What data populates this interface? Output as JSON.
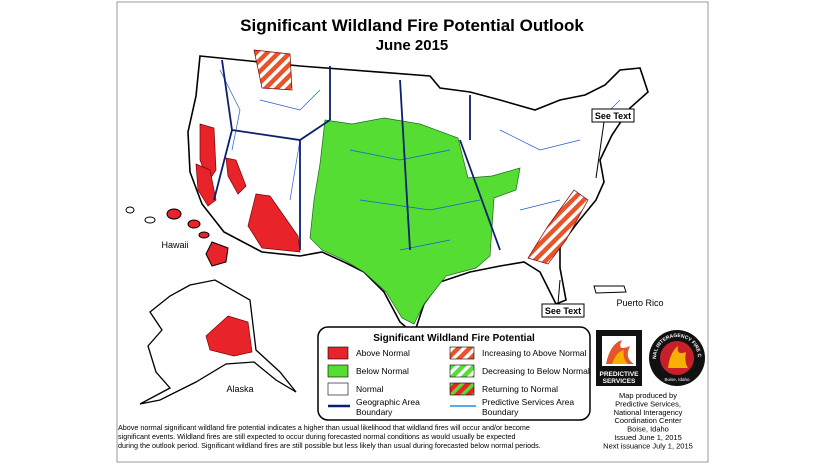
{
  "title": "Significant Wildland Fire Potential Outlook",
  "subtitle": "June 2015",
  "map_labels": {
    "hawaii": "Hawaii",
    "alaska": "Alaska",
    "puerto_rico": "Puerto Rico",
    "see_text": [
      "See Text",
      "See Text"
    ]
  },
  "legend": {
    "title": "Significant Wildland Fire Potential",
    "left": [
      {
        "lines": [
          "Above Normal"
        ]
      },
      {
        "lines": [
          "Below Normal"
        ]
      },
      {
        "lines": [
          "Normal"
        ]
      },
      {
        "lines": [
          "Geographic Area",
          "Boundary"
        ]
      }
    ],
    "right": [
      {
        "lines": [
          "Increasing to Above Normal"
        ]
      },
      {
        "lines": [
          "Decreasing to Below Normal"
        ]
      },
      {
        "lines": [
          "Returning to Normal"
        ]
      },
      {
        "lines": [
          "Predictive Services Area",
          "Boundary"
        ]
      }
    ]
  },
  "footnote": [
    "Above normal significant wildland fire potential indicates a higher than usual likelihood that wildland fires will occur and/or become",
    "significant events.  Wildland fires are still expected to occur during forecasted normal conditions as would usually be expected",
    "during the outlook period.  Significant wildland fires are still possible but less likely than usual during forecasted below normal periods."
  ],
  "credits": [
    "Map produced by",
    "Predictive Services,",
    "National Interagency",
    "Coordination Center",
    "Boise, Idaho",
    "Issued June 1, 2015",
    "Next issuance July 1, 2015"
  ],
  "logos": {
    "predictive": [
      "PREDICTIVE",
      "SERVICES"
    ],
    "nifc": "NATIONAL INTERAGENCY FIRE CENTER",
    "nifc_city": "Boise, Idaho"
  }
}
